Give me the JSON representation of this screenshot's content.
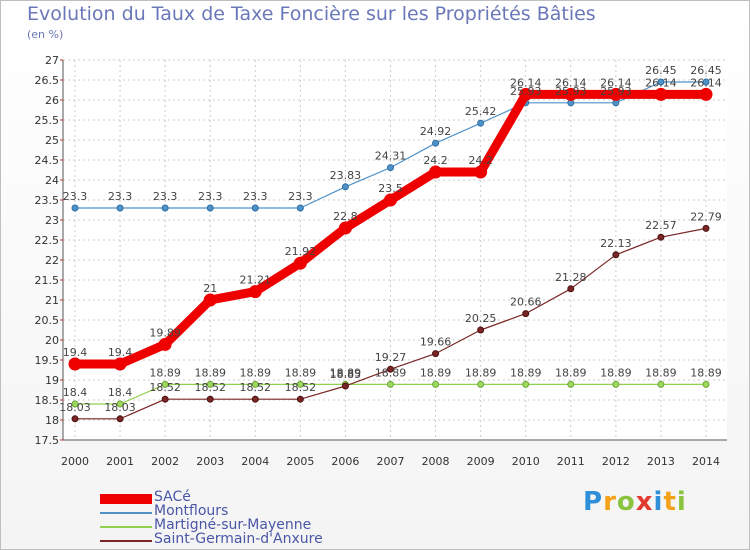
{
  "chart_data": {
    "type": "line",
    "title": "Evolution du Taux de Taxe Foncière sur les Propriétés Bâties",
    "ylabel": "(en %)",
    "xlabel": "",
    "ylim": [
      17.5,
      27
    ],
    "yticks": [
      "17.5",
      "18",
      "18.5",
      "19",
      "19.5",
      "20",
      "20.5",
      "21",
      "21.5",
      "22",
      "22.5",
      "23",
      "23.5",
      "24",
      "24.5",
      "25",
      "25.5",
      "26",
      "26.5",
      "27"
    ],
    "x": [
      "2000",
      "2001",
      "2002",
      "2003",
      "2004",
      "2005",
      "2006",
      "2007",
      "2008",
      "2009",
      "2010",
      "2011",
      "2012",
      "2013",
      "2014"
    ],
    "grid": true,
    "series": [
      {
        "name": "SACé",
        "color": "#ee0000",
        "values": [
          19.4,
          19.4,
          19.89,
          21,
          21.21,
          21.92,
          22.8,
          23.5,
          24.2,
          24.2,
          26.14,
          26.14,
          26.14,
          26.14,
          26.14
        ],
        "labels": [
          "19.4",
          "19.4",
          "19.89",
          "21",
          "21.21",
          "21.92",
          "22.8",
          "23.5",
          "24.2",
          "24.2",
          "26.14",
          "26.14",
          "26.14",
          "26.14",
          "26.14"
        ]
      },
      {
        "name": "Montflours",
        "color": "#4f92c8",
        "values": [
          23.3,
          23.3,
          23.3,
          23.3,
          23.3,
          23.3,
          23.83,
          24.31,
          24.92,
          25.42,
          25.93,
          25.93,
          25.93,
          26.45,
          26.45
        ],
        "labels": [
          "23.3",
          "23.3",
          "23.3",
          "23.3",
          "23.3",
          "23.3",
          "23.83",
          "24.31",
          "24.92",
          "25.42",
          "25.93",
          "25.93",
          "25.93",
          "26.45",
          "26.45"
        ]
      },
      {
        "name": "Martigné-sur-Mayenne",
        "color": "#8fd04f",
        "values": [
          18.4,
          18.4,
          18.89,
          18.89,
          18.89,
          18.89,
          18.89,
          18.89,
          18.89,
          18.89,
          18.89,
          18.89,
          18.89,
          18.89,
          18.89
        ],
        "labels": [
          "18.4",
          "18.4",
          "18.89",
          "18.89",
          "18.89",
          "18.89",
          "18.89",
          "18.89",
          "18.89",
          "18.89",
          "18.89",
          "18.89",
          "18.89",
          "18.89",
          "18.89"
        ]
      },
      {
        "name": "Saint-Germain-d'Anxure",
        "color": "#7a2626",
        "values": [
          18.03,
          18.03,
          18.52,
          18.52,
          18.52,
          18.52,
          18.85,
          19.27,
          19.66,
          20.25,
          20.66,
          21.28,
          22.13,
          22.57,
          22.79
        ],
        "labels": [
          "18.03",
          "18.03",
          "18.52",
          "18.52",
          "18.52",
          "18.52",
          "18.85",
          "19.27",
          "19.66",
          "20.25",
          "20.66",
          "21.28",
          "22.13",
          "22.57",
          "22.79"
        ]
      }
    ]
  },
  "brand": {
    "letters": [
      "P",
      "r",
      "o",
      "x",
      "i",
      "t",
      "i"
    ],
    "colors": [
      "#2f8fd8",
      "#f4a21a",
      "#8ac43f",
      "#e23a2e",
      "#2f8fd8",
      "#f4a21a",
      "#8ac43f"
    ]
  }
}
